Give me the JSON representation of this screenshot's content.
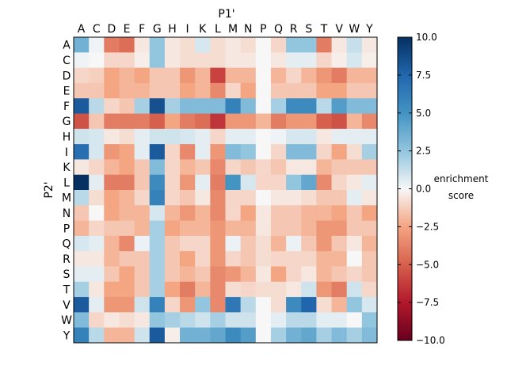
{
  "chart_data": {
    "type": "heatmap",
    "xlabel": "P1'",
    "ylabel": "P2'",
    "x_categories": [
      "A",
      "C",
      "D",
      "E",
      "F",
      "G",
      "H",
      "I",
      "K",
      "L",
      "M",
      "N",
      "P",
      "Q",
      "R",
      "S",
      "T",
      "V",
      "W",
      "Y"
    ],
    "y_categories": [
      "A",
      "C",
      "D",
      "E",
      "F",
      "G",
      "H",
      "I",
      "K",
      "L",
      "M",
      "N",
      "P",
      "Q",
      "R",
      "S",
      "T",
      "V",
      "W",
      "Y"
    ],
    "colorbar": {
      "label_line1": "enrichment",
      "label_line2": "score",
      "range": [
        -10,
        10
      ],
      "ticks": [
        "10.0",
        "7.5",
        "5.0",
        "2.5",
        "0.0",
        "−2.5",
        "−5.0",
        "−7.5",
        "−10.0"
      ],
      "colormap": "RdBu_r"
    },
    "values": [
      [
        3.5,
        0.2,
        -4,
        -4.5,
        -0.5,
        2.5,
        -0.5,
        -0.8,
        0.8,
        -0.8,
        -0.5,
        -0.8,
        0,
        -1,
        2.5,
        2.5,
        -4,
        -0.5,
        1.2,
        -0.5
      ],
      [
        0.2,
        0,
        -1,
        -1,
        -0.3,
        2.5,
        -0.5,
        -0.8,
        -0.8,
        -0.8,
        -0.5,
        -0.5,
        0,
        -0.5,
        0.5,
        0.5,
        -1,
        -0.3,
        0.8,
        -0.3
      ],
      [
        -1,
        -1.2,
        -2.5,
        -2,
        -2.5,
        -1.5,
        -1.5,
        -3,
        -2,
        -6,
        -2,
        -2,
        0,
        -2,
        -1,
        -2,
        -3,
        -4,
        -2,
        -2
      ],
      [
        -1.5,
        -1.5,
        -2.5,
        -2,
        -2,
        -1.5,
        -1.5,
        -2.5,
        -2,
        -3.5,
        -1,
        -2.5,
        0,
        -1.5,
        -1.5,
        -1.5,
        -2.5,
        -2.5,
        -1.5,
        -1.5
      ],
      [
        8,
        1.5,
        -1,
        -1.5,
        2,
        8.5,
        2,
        3,
        3,
        3,
        6,
        3,
        0,
        2,
        5.5,
        5.5,
        1.5,
        4.5,
        3,
        3
      ],
      [
        -5.5,
        -1.5,
        -4,
        -4,
        -4,
        -5,
        -2.5,
        -4,
        -4.5,
        -6.5,
        -3,
        -3,
        -2,
        -4,
        -3,
        -3,
        -5,
        -5.5,
        -2,
        -3.5
      ],
      [
        1,
        0.8,
        -0.5,
        -0.8,
        0.5,
        1,
        1,
        0.8,
        0.5,
        -1,
        0.5,
        0.5,
        0,
        0.2,
        0.8,
        0.8,
        -0.5,
        0.5,
        0.5,
        0.5
      ],
      [
        7,
        0.8,
        -3,
        -2.5,
        0.5,
        8,
        -1,
        -3.5,
        0.5,
        -3,
        3,
        2.5,
        0,
        -1,
        3,
        3,
        -1,
        -2.5,
        -0.8,
        2
      ],
      [
        -0.5,
        -1,
        -2,
        -2.5,
        -1.5,
        3,
        -1,
        -2,
        -1.5,
        -3.5,
        -1,
        -1.5,
        -1,
        -1.5,
        -0.5,
        -0.5,
        -2,
        -1.5,
        -1.5,
        -1.5
      ],
      [
        10,
        0.5,
        -4,
        -4,
        -1.5,
        5.5,
        -1,
        -3,
        0.5,
        -4,
        5,
        0.8,
        -1,
        -1,
        2.5,
        4,
        -3.5,
        -1,
        -0.5,
        0.5
      ],
      [
        1.5,
        -0.8,
        -2.5,
        -2,
        -1,
        6,
        -1,
        -1.5,
        -0.5,
        -3.5,
        -1,
        -1,
        0,
        -0.5,
        -0.5,
        -0.8,
        -1.5,
        -1.5,
        0.5,
        -0.5
      ],
      [
        -1.5,
        0,
        -2.5,
        -2,
        -2,
        0.8,
        -2,
        -3,
        -2,
        -3.5,
        -1,
        -2.5,
        -0.5,
        -1.5,
        -1.5,
        -2,
        -2,
        -2.5,
        -1.5,
        -2.5
      ],
      [
        -2,
        -1,
        -1.5,
        -1.5,
        -2,
        2,
        -2.5,
        -2,
        -2,
        -3,
        -2,
        -2,
        -0.5,
        -1.5,
        -1.5,
        -2,
        -3,
        -3,
        -1.5,
        -1.5
      ],
      [
        0.8,
        0.5,
        -2,
        -3.5,
        0.3,
        2,
        -1.5,
        -1,
        -1,
        -3,
        0.3,
        -1.5,
        -0.8,
        -2,
        0.3,
        -1.5,
        -3,
        -1.5,
        -0.5,
        -2
      ],
      [
        -0.5,
        -0.5,
        -2,
        -1.5,
        -1.5,
        2,
        -1.5,
        -2.5,
        -1,
        -3,
        -1,
        -1.5,
        -0.8,
        -1,
        -1,
        -1,
        -2,
        -2,
        0,
        -1.5
      ],
      [
        0.5,
        0.5,
        -1.5,
        -2.5,
        -1.5,
        2,
        -1.5,
        -2,
        -1.5,
        -3.5,
        -3,
        -2,
        -0.5,
        -2.5,
        -1,
        -0.5,
        -2,
        -1.5,
        -1,
        -1.5
      ],
      [
        2,
        -0.5,
        -2.5,
        -2.5,
        -1.5,
        2,
        -2.5,
        -4,
        -2,
        -3.5,
        -0.8,
        -1,
        -0.8,
        -0.8,
        -0.5,
        1,
        -3,
        -4,
        1,
        -1
      ],
      [
        8,
        0.5,
        -3,
        -3,
        1,
        6,
        -1,
        -3,
        2.5,
        -3.5,
        6.5,
        1.5,
        0,
        -0.8,
        5.5,
        7.5,
        -0.8,
        -2,
        2.5,
        0.8
      ],
      [
        3,
        -1,
        -0.5,
        -0.8,
        -0.5,
        2.5,
        2,
        1.5,
        1,
        2,
        1,
        1,
        0,
        0.5,
        1.5,
        1.5,
        0.5,
        0.5,
        0,
        2.5
      ],
      [
        6,
        1.5,
        -2,
        -2,
        1,
        8,
        -0.3,
        3.5,
        3.5,
        4,
        5.5,
        4.5,
        0,
        2,
        3.5,
        4,
        2,
        3,
        2,
        3
      ]
    ]
  }
}
